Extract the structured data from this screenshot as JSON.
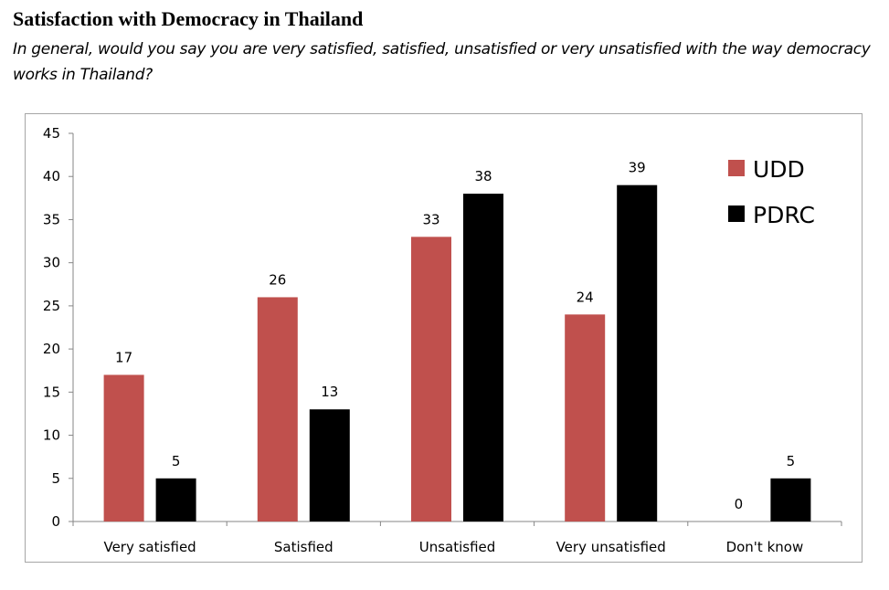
{
  "chart_data": {
    "type": "bar",
    "title": "Satisfaction with Democracy in Thailand",
    "subtitle": "In general, would you say you are very satisfied, satisfied, unsatisfied or very unsatisfied with the way democracy works in Thailand?",
    "categories": [
      "Very satisfied",
      "Satisfied",
      "Unsatisfied",
      "Very unsatisfied",
      "Don't know"
    ],
    "series": [
      {
        "name": "UDD",
        "color": "#c0504d",
        "values": [
          17,
          26,
          33,
          24,
          0
        ]
      },
      {
        "name": "PDRC",
        "color": "#000000",
        "values": [
          5,
          13,
          38,
          39,
          5
        ]
      }
    ],
    "xlabel": "",
    "ylabel": "",
    "ylim": [
      0,
      45
    ],
    "yticks": [
      0,
      5,
      10,
      15,
      20,
      25,
      30,
      35,
      40,
      45
    ],
    "grid": false,
    "data_labels": true,
    "legend_position": "top-right"
  }
}
